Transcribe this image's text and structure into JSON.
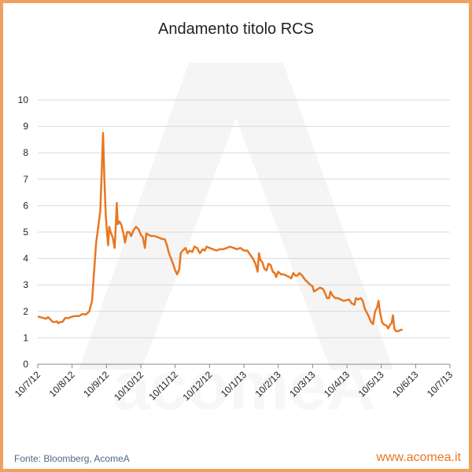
{
  "colors": {
    "line": "#e87722",
    "frame": "#f0a060",
    "grid": "#d9d9d9",
    "watermark": "#f5f5f5"
  },
  "watermark_text": "acomeA",
  "footer": {
    "source": "Fonte: Bloomberg, AcomeA",
    "site": "www.acomea.it"
  },
  "chart_data": {
    "type": "line",
    "title": "Andamento titolo RCS",
    "xlabel": "",
    "ylabel": "",
    "ylim": [
      0,
      10
    ],
    "yticks": [
      0,
      1,
      2,
      3,
      4,
      5,
      6,
      7,
      8,
      9,
      10
    ],
    "grid": true,
    "legend": "none",
    "xticks": [
      "10/7/12",
      "10/8/12",
      "10/9/12",
      "10/10/12",
      "10/11/12",
      "10/12/12",
      "10/1/13",
      "10/2/13",
      "10/3/13",
      "10/4/13",
      "10/5/13",
      "10/6/13",
      "10/7/13"
    ],
    "series": [
      {
        "name": "",
        "points": [
          [
            0.0,
            1.8
          ],
          [
            0.08,
            1.78
          ],
          [
            0.16,
            1.75
          ],
          [
            0.24,
            1.72
          ],
          [
            0.3,
            1.78
          ],
          [
            0.38,
            1.68
          ],
          [
            0.44,
            1.6
          ],
          [
            0.5,
            1.6
          ],
          [
            0.56,
            1.62
          ],
          [
            0.6,
            1.55
          ],
          [
            0.66,
            1.6
          ],
          [
            0.72,
            1.6
          ],
          [
            0.8,
            1.75
          ],
          [
            0.9,
            1.75
          ],
          [
            1.0,
            1.8
          ],
          [
            1.1,
            1.82
          ],
          [
            1.2,
            1.82
          ],
          [
            1.3,
            1.9
          ],
          [
            1.4,
            1.88
          ],
          [
            1.5,
            2.0
          ],
          [
            1.58,
            2.4
          ],
          [
            1.64,
            3.5
          ],
          [
            1.7,
            4.6
          ],
          [
            1.76,
            5.2
          ],
          [
            1.82,
            5.8
          ],
          [
            1.86,
            7.2
          ],
          [
            1.9,
            8.75
          ],
          [
            1.94,
            7.0
          ],
          [
            1.98,
            5.6
          ],
          [
            2.02,
            4.9
          ],
          [
            2.05,
            4.5
          ],
          [
            2.08,
            5.2
          ],
          [
            2.12,
            5.0
          ],
          [
            2.18,
            4.8
          ],
          [
            2.24,
            4.4
          ],
          [
            2.28,
            5.5
          ],
          [
            2.3,
            6.1
          ],
          [
            2.33,
            5.3
          ],
          [
            2.38,
            5.4
          ],
          [
            2.44,
            5.25
          ],
          [
            2.5,
            4.9
          ],
          [
            2.54,
            4.6
          ],
          [
            2.6,
            5.0
          ],
          [
            2.66,
            5.0
          ],
          [
            2.72,
            4.85
          ],
          [
            2.78,
            5.05
          ],
          [
            2.86,
            5.2
          ],
          [
            2.94,
            5.1
          ],
          [
            3.0,
            4.9
          ],
          [
            3.06,
            4.8
          ],
          [
            3.12,
            4.4
          ],
          [
            3.16,
            4.95
          ],
          [
            3.22,
            4.9
          ],
          [
            3.3,
            4.85
          ],
          [
            3.4,
            4.85
          ],
          [
            3.5,
            4.8
          ],
          [
            3.6,
            4.75
          ],
          [
            3.7,
            4.72
          ],
          [
            3.76,
            4.5
          ],
          [
            3.82,
            4.2
          ],
          [
            3.88,
            4.0
          ],
          [
            3.94,
            3.8
          ],
          [
            4.0,
            3.55
          ],
          [
            4.06,
            3.4
          ],
          [
            4.12,
            3.6
          ],
          [
            4.16,
            4.2
          ],
          [
            4.22,
            4.3
          ],
          [
            4.3,
            4.4
          ],
          [
            4.36,
            4.2
          ],
          [
            4.42,
            4.3
          ],
          [
            4.5,
            4.25
          ],
          [
            4.56,
            4.45
          ],
          [
            4.64,
            4.4
          ],
          [
            4.72,
            4.2
          ],
          [
            4.8,
            4.35
          ],
          [
            4.86,
            4.3
          ],
          [
            4.92,
            4.45
          ],
          [
            5.0,
            4.4
          ],
          [
            5.1,
            4.35
          ],
          [
            5.2,
            4.3
          ],
          [
            5.3,
            4.35
          ],
          [
            5.4,
            4.35
          ],
          [
            5.5,
            4.4
          ],
          [
            5.6,
            4.45
          ],
          [
            5.7,
            4.4
          ],
          [
            5.8,
            4.35
          ],
          [
            5.9,
            4.4
          ],
          [
            6.0,
            4.3
          ],
          [
            6.1,
            4.3
          ],
          [
            6.18,
            4.15
          ],
          [
            6.26,
            4.0
          ],
          [
            6.34,
            3.8
          ],
          [
            6.4,
            3.5
          ],
          [
            6.44,
            4.2
          ],
          [
            6.48,
            3.95
          ],
          [
            6.54,
            3.85
          ],
          [
            6.6,
            3.6
          ],
          [
            6.66,
            3.55
          ],
          [
            6.72,
            3.8
          ],
          [
            6.78,
            3.75
          ],
          [
            6.84,
            3.5
          ],
          [
            6.9,
            3.45
          ],
          [
            6.94,
            3.3
          ],
          [
            7.0,
            3.5
          ],
          [
            7.08,
            3.4
          ],
          [
            7.16,
            3.4
          ],
          [
            7.24,
            3.35
          ],
          [
            7.32,
            3.3
          ],
          [
            7.38,
            3.25
          ],
          [
            7.44,
            3.45
          ],
          [
            7.5,
            3.35
          ],
          [
            7.56,
            3.35
          ],
          [
            7.62,
            3.45
          ],
          [
            7.7,
            3.35
          ],
          [
            7.78,
            3.2
          ],
          [
            7.86,
            3.1
          ],
          [
            7.94,
            3.0
          ],
          [
            8.0,
            2.95
          ],
          [
            8.04,
            2.75
          ],
          [
            8.1,
            2.8
          ],
          [
            8.16,
            2.85
          ],
          [
            8.22,
            2.9
          ],
          [
            8.3,
            2.85
          ],
          [
            8.36,
            2.7
          ],
          [
            8.42,
            2.5
          ],
          [
            8.48,
            2.5
          ],
          [
            8.52,
            2.75
          ],
          [
            8.58,
            2.6
          ],
          [
            8.66,
            2.5
          ],
          [
            8.74,
            2.5
          ],
          [
            8.82,
            2.45
          ],
          [
            8.9,
            2.4
          ],
          [
            8.98,
            2.42
          ],
          [
            9.06,
            2.45
          ],
          [
            9.14,
            2.3
          ],
          [
            9.22,
            2.25
          ],
          [
            9.26,
            2.5
          ],
          [
            9.32,
            2.45
          ],
          [
            9.4,
            2.5
          ],
          [
            9.46,
            2.4
          ],
          [
            9.52,
            2.1
          ],
          [
            9.58,
            1.95
          ],
          [
            9.64,
            1.8
          ],
          [
            9.7,
            1.6
          ],
          [
            9.76,
            1.52
          ],
          [
            9.82,
            2.0
          ],
          [
            9.88,
            2.15
          ],
          [
            9.92,
            2.4
          ],
          [
            9.96,
            2.0
          ],
          [
            10.02,
            1.6
          ],
          [
            10.08,
            1.5
          ],
          [
            10.16,
            1.45
          ],
          [
            10.2,
            1.35
          ],
          [
            10.26,
            1.5
          ],
          [
            10.3,
            1.55
          ],
          [
            10.34,
            1.85
          ],
          [
            10.38,
            1.35
          ],
          [
            10.42,
            1.25
          ],
          [
            10.5,
            1.25
          ],
          [
            10.56,
            1.3
          ],
          [
            10.62,
            1.3
          ]
        ]
      }
    ]
  }
}
